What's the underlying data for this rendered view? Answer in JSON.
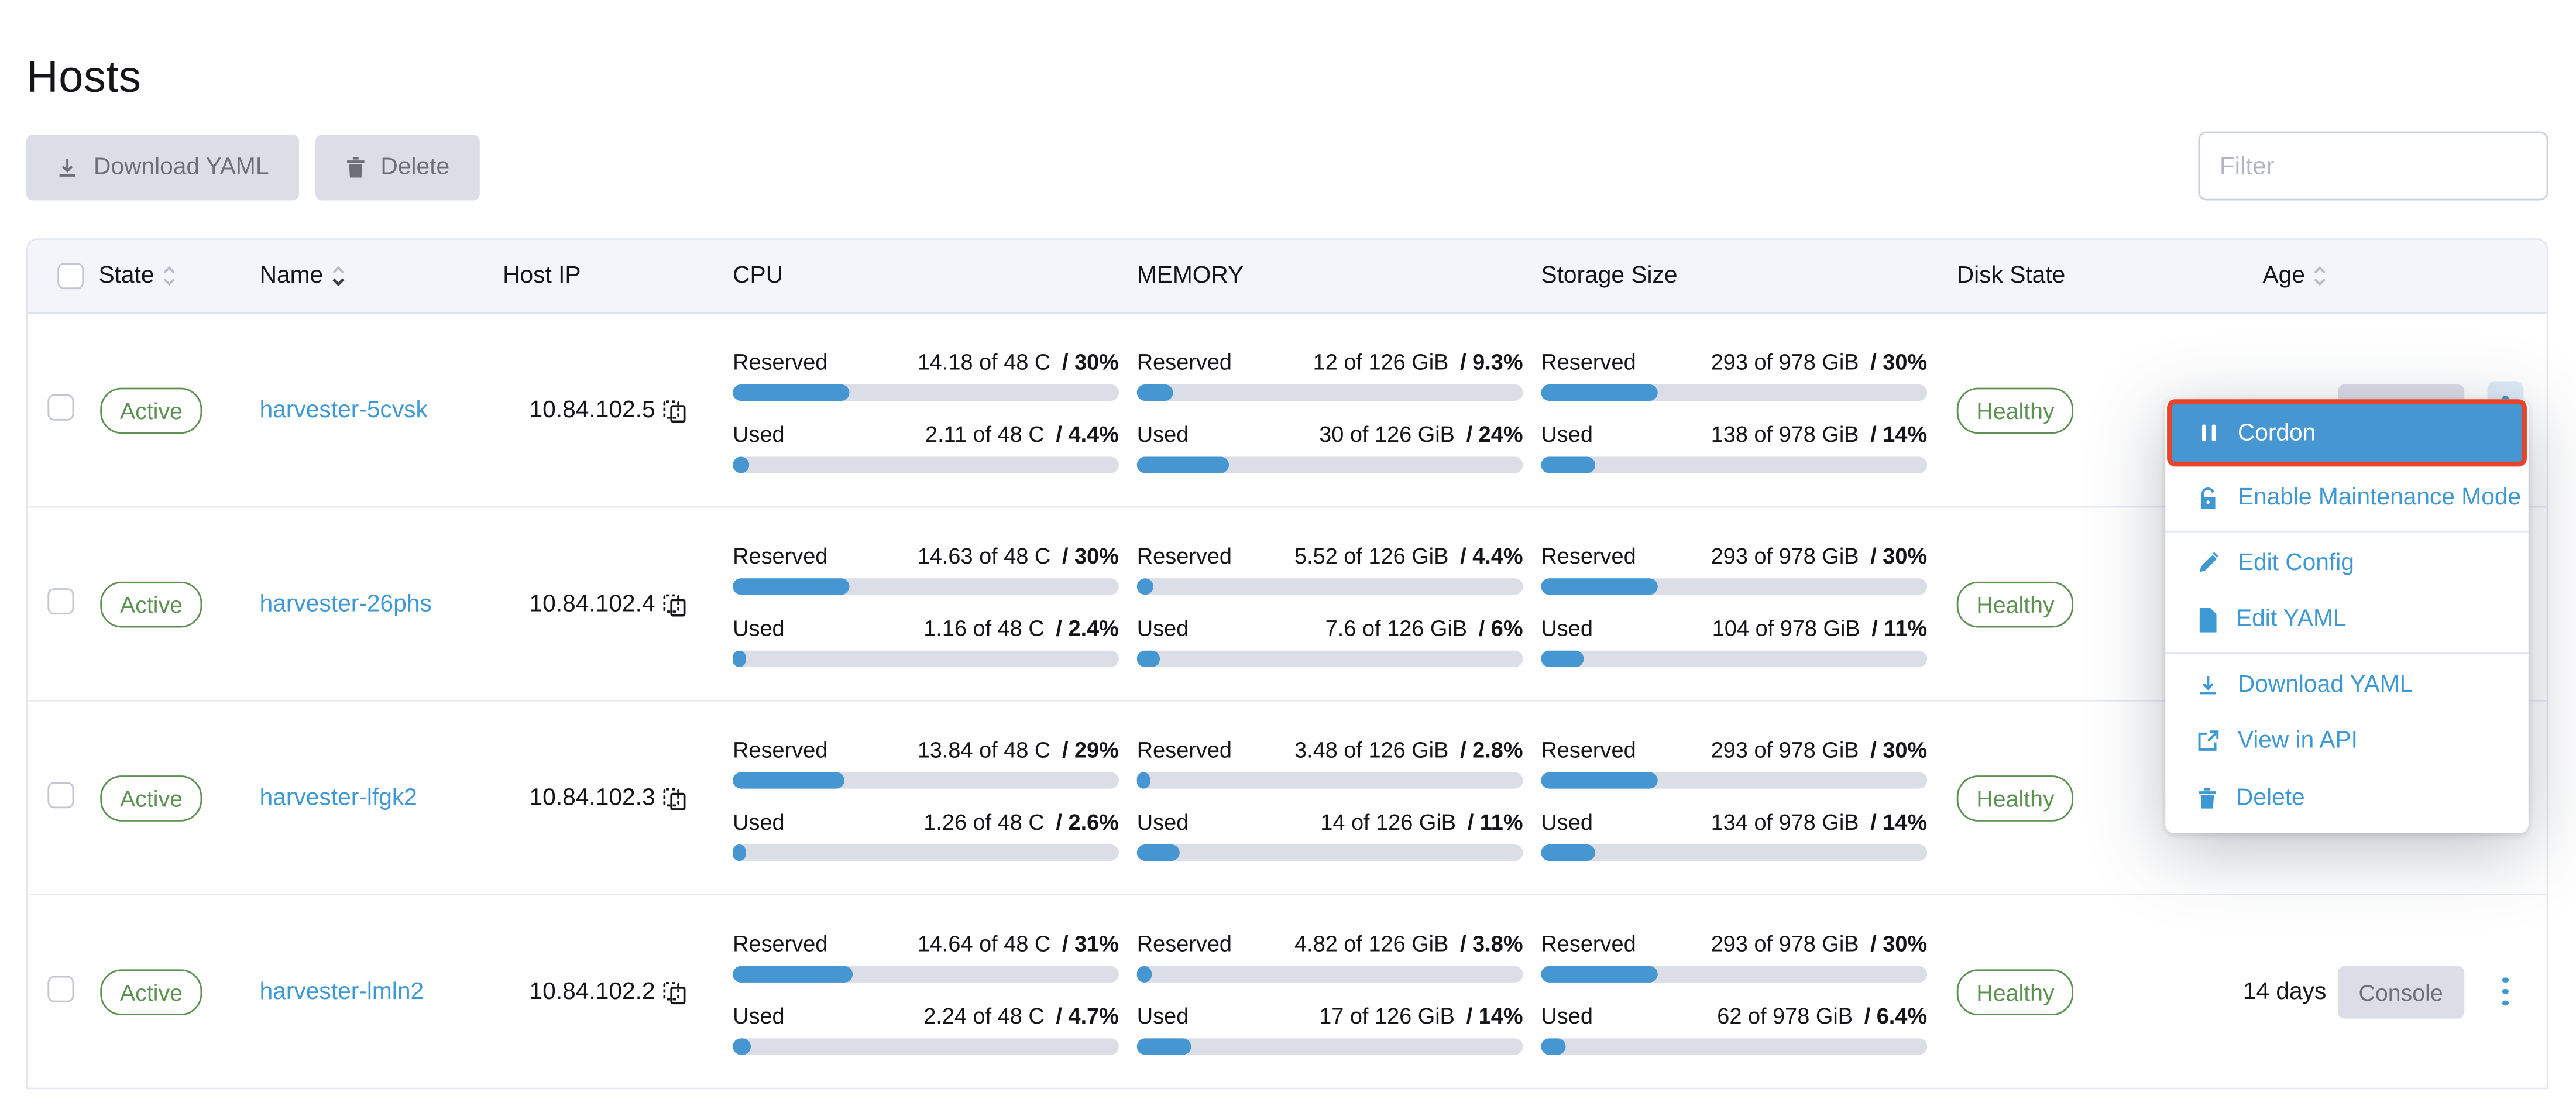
{
  "page": {
    "title": "Hosts"
  },
  "colors": {
    "accent_blue": "#3d98d3",
    "bar_blue": "#4596d1",
    "status_green": "#5d9152",
    "highlight_red": "#e8432c",
    "button_gray": "#dcdee7"
  },
  "icons": {
    "download": "download-icon",
    "trash": "trash-icon",
    "copy": "copy-icon",
    "kebab": "kebab-menu-icon",
    "sort": "sort-chevrons-icon",
    "pause": "pause-icon",
    "unlock": "unlock-icon",
    "pencil": "pencil-icon",
    "file": "file-icon",
    "external": "external-link-icon"
  },
  "toolbar": {
    "download_yaml_label": "Download YAML",
    "delete_label": "Delete",
    "filter_placeholder": "Filter"
  },
  "table": {
    "headers": {
      "state": "State",
      "name": "Name",
      "host_ip": "Host IP",
      "cpu": "CPU",
      "memory": "MEMORY",
      "storage": "Storage Size",
      "disk_state": "Disk State",
      "age": "Age"
    },
    "metric_labels": {
      "reserved": "Reserved",
      "used": "Used"
    },
    "console_label": "Console",
    "rows": [
      {
        "state": "Active",
        "name": "harvester-5cvsk",
        "host_ip": "10.84.102.5",
        "cpu": {
          "reserved": {
            "text": "14.18 of 48 C",
            "pct": "/ 30%",
            "fill": 30
          },
          "used": {
            "text": "2.11 of 48 C",
            "pct": "/ 4.4%",
            "fill": 4.4
          }
        },
        "memory": {
          "reserved": {
            "text": "12 of 126 GiB",
            "pct": "/ 9.3%",
            "fill": 9.3
          },
          "used": {
            "text": "30 of 126 GiB",
            "pct": "/ 24%",
            "fill": 24
          }
        },
        "storage": {
          "reserved": {
            "text": "293 of 978 GiB",
            "pct": "/ 30%",
            "fill": 30
          },
          "used": {
            "text": "138 of 978 GiB",
            "pct": "/ 14%",
            "fill": 14
          }
        },
        "disk_state": "Healthy",
        "age": ""
      },
      {
        "state": "Active",
        "name": "harvester-26phs",
        "host_ip": "10.84.102.4",
        "cpu": {
          "reserved": {
            "text": "14.63 of 48 C",
            "pct": "/ 30%",
            "fill": 30
          },
          "used": {
            "text": "1.16 of 48 C",
            "pct": "/ 2.4%",
            "fill": 2.4
          }
        },
        "memory": {
          "reserved": {
            "text": "5.52 of 126 GiB",
            "pct": "/ 4.4%",
            "fill": 4.4
          },
          "used": {
            "text": "7.6 of 126 GiB",
            "pct": "/ 6%",
            "fill": 6
          }
        },
        "storage": {
          "reserved": {
            "text": "293 of 978 GiB",
            "pct": "/ 30%",
            "fill": 30
          },
          "used": {
            "text": "104 of 978 GiB",
            "pct": "/ 11%",
            "fill": 11
          }
        },
        "disk_state": "Healthy",
        "age": ""
      },
      {
        "state": "Active",
        "name": "harvester-lfgk2",
        "host_ip": "10.84.102.3",
        "cpu": {
          "reserved": {
            "text": "13.84 of 48 C",
            "pct": "/ 29%",
            "fill": 29
          },
          "used": {
            "text": "1.26 of 48 C",
            "pct": "/ 2.6%",
            "fill": 2.6
          }
        },
        "memory": {
          "reserved": {
            "text": "3.48 of 126 GiB",
            "pct": "/ 2.8%",
            "fill": 2.8
          },
          "used": {
            "text": "14 of 126 GiB",
            "pct": "/ 11%",
            "fill": 11
          }
        },
        "storage": {
          "reserved": {
            "text": "293 of 978 GiB",
            "pct": "/ 30%",
            "fill": 30
          },
          "used": {
            "text": "134 of 978 GiB",
            "pct": "/ 14%",
            "fill": 14
          }
        },
        "disk_state": "Healthy",
        "age": ""
      },
      {
        "state": "Active",
        "name": "harvester-lmln2",
        "host_ip": "10.84.102.2",
        "cpu": {
          "reserved": {
            "text": "14.64 of 48 C",
            "pct": "/ 31%",
            "fill": 31
          },
          "used": {
            "text": "2.24 of 48 C",
            "pct": "/ 4.7%",
            "fill": 4.7
          }
        },
        "memory": {
          "reserved": {
            "text": "4.82 of 126 GiB",
            "pct": "/ 3.8%",
            "fill": 3.8
          },
          "used": {
            "text": "17 of 126 GiB",
            "pct": "/ 14%",
            "fill": 14
          }
        },
        "storage": {
          "reserved": {
            "text": "293 of 978 GiB",
            "pct": "/ 30%",
            "fill": 30
          },
          "used": {
            "text": "62 of 978 GiB",
            "pct": "/ 6.4%",
            "fill": 6.4
          }
        },
        "disk_state": "Healthy",
        "age": "14 days"
      }
    ]
  },
  "context_menu": {
    "items": [
      {
        "label": "Cordon",
        "icon": "pause-icon",
        "highlighted": true
      },
      {
        "label": "Enable Maintenance Mode",
        "icon": "unlock-icon"
      },
      {
        "label": "Edit Config",
        "icon": "pencil-icon"
      },
      {
        "label": "Edit YAML",
        "icon": "file-icon"
      },
      {
        "label": "Download YAML",
        "icon": "download-icon"
      },
      {
        "label": "View in API",
        "icon": "external-link-icon"
      },
      {
        "label": "Delete",
        "icon": "trash-icon"
      }
    ]
  }
}
